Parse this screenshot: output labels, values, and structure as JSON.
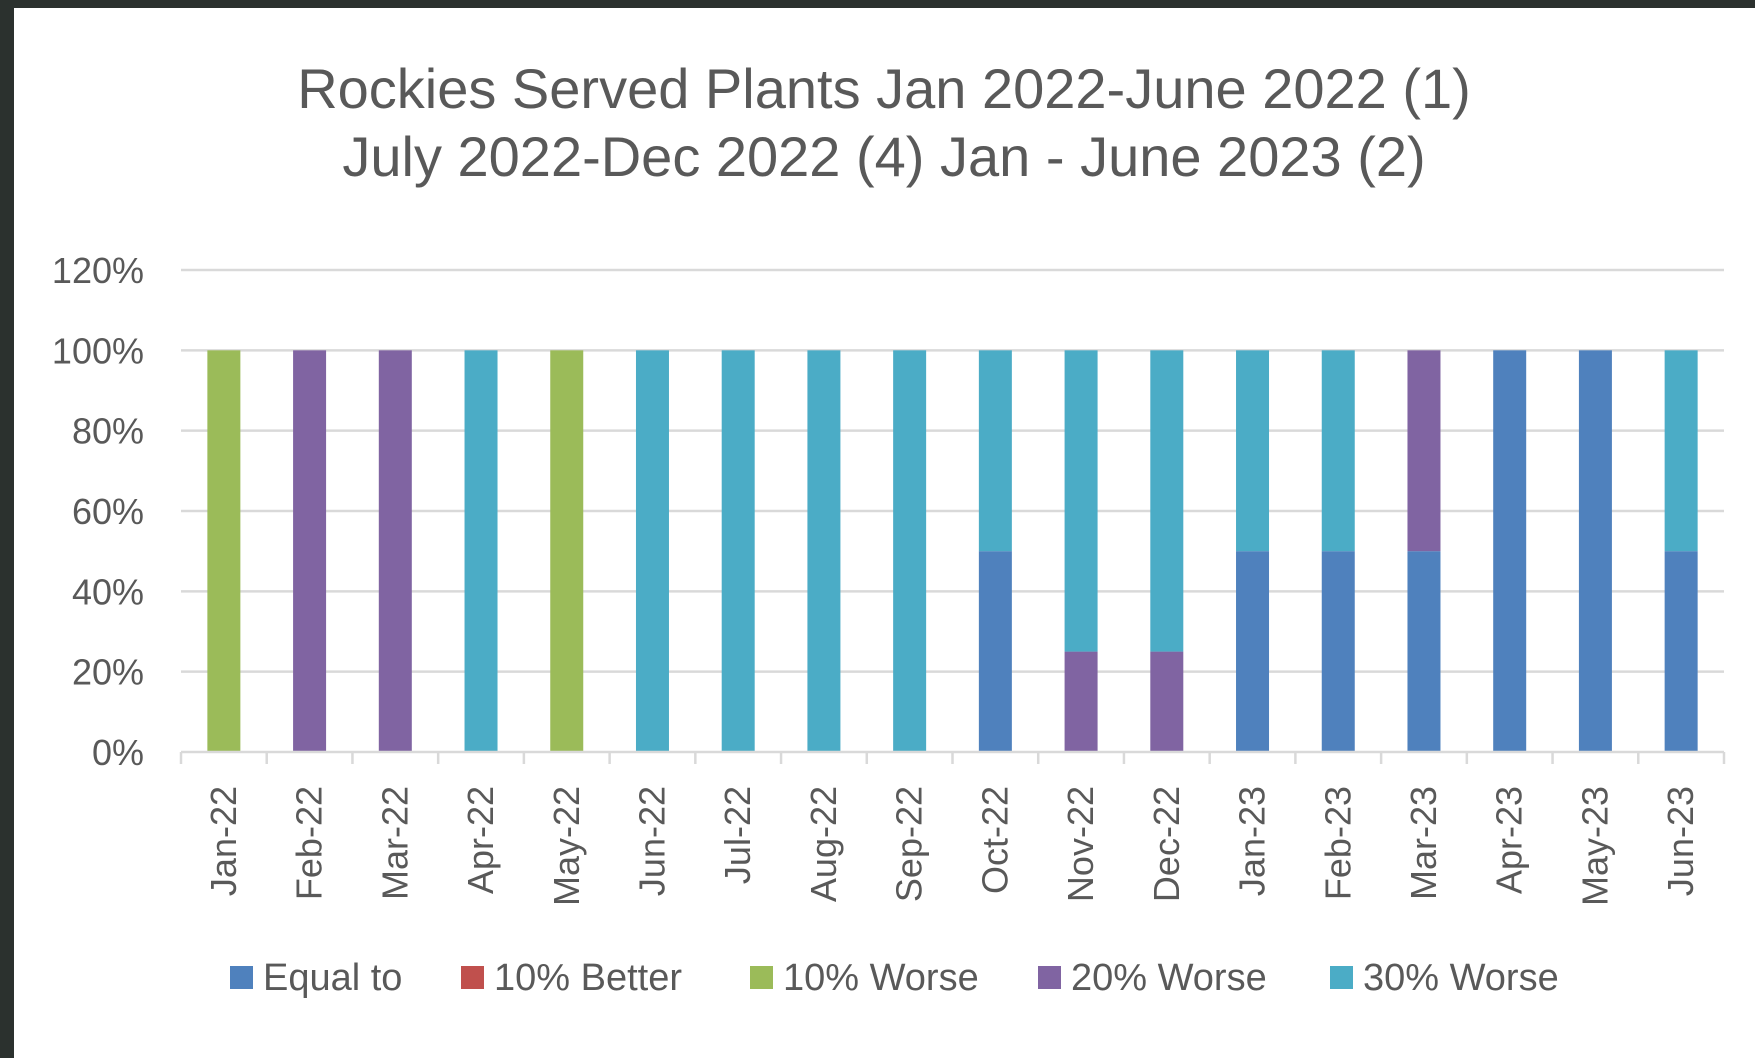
{
  "chart_data": {
    "type": "bar",
    "stacked": true,
    "title_lines": [
      "Rockies Served  Plants Jan 2022-June 2022 (1)",
      "July 2022-Dec 2022 (4) Jan - June 2023 (2)"
    ],
    "categories": [
      "Jan-22",
      "Feb-22",
      "Mar-22",
      "Apr-22",
      "May-22",
      "Jun-22",
      "Jul-22",
      "Aug-22",
      "Sep-22",
      "Oct-22",
      "Nov-22",
      "Dec-22",
      "Jan-23",
      "Feb-23",
      "Mar-23",
      "Apr-23",
      "May-23",
      "Jun-23"
    ],
    "series": [
      {
        "name": "Equal to",
        "color": "#4f81bd",
        "values": [
          0,
          0,
          0,
          0,
          0,
          0,
          0,
          0,
          0,
          50,
          0,
          0,
          50,
          50,
          50,
          100,
          100,
          50
        ]
      },
      {
        "name": "10% Better",
        "color": "#c0504d",
        "values": [
          0,
          0,
          0,
          0,
          0,
          0,
          0,
          0,
          0,
          0,
          0,
          0,
          0,
          0,
          0,
          0,
          0,
          0
        ]
      },
      {
        "name": "10% Worse",
        "color": "#9bbb59",
        "values": [
          100,
          0,
          0,
          0,
          100,
          0,
          0,
          0,
          0,
          0,
          0,
          0,
          0,
          0,
          0,
          0,
          0,
          0
        ]
      },
      {
        "name": "20% Worse",
        "color": "#8064a2",
        "values": [
          0,
          100,
          100,
          0,
          0,
          0,
          0,
          0,
          0,
          0,
          25,
          25,
          0,
          0,
          50,
          0,
          0,
          0
        ]
      },
      {
        "name": "30% Worse",
        "color": "#4bacc6",
        "values": [
          0,
          0,
          0,
          100,
          0,
          100,
          100,
          100,
          100,
          50,
          75,
          75,
          50,
          50,
          0,
          0,
          0,
          50
        ]
      }
    ],
    "yticks": [
      "0%",
      "20%",
      "40%",
      "60%",
      "80%",
      "100%",
      "120%"
    ],
    "ylim": [
      0,
      120
    ],
    "grid": true,
    "legend_position": "bottom"
  }
}
